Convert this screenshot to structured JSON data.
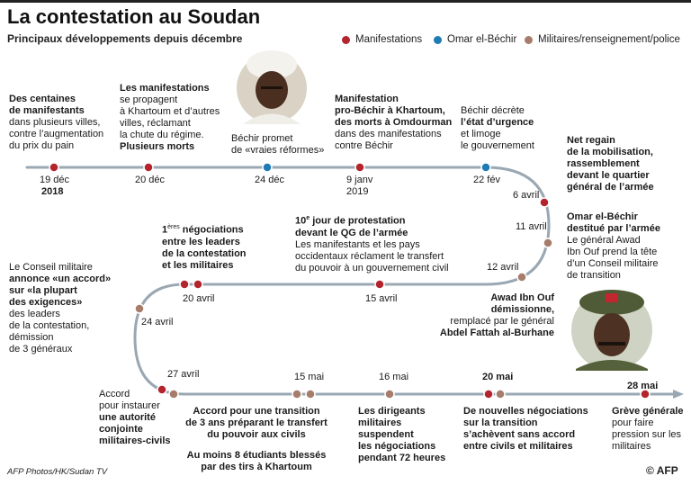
{
  "header": {
    "title": "La contestation au Soudan",
    "subtitle": "Principaux développements depuis décembre"
  },
  "legend": [
    {
      "label": "Manifestations",
      "color": "#b3242c"
    },
    {
      "label": "Omar el-Béchir",
      "color": "#1f7bb5"
    },
    {
      "label": "Militaires/renseignement/police",
      "color": "#a77c6a"
    }
  ],
  "photos": {
    "bashir": "portrait-omar-el-bechir",
    "burhane": "portrait-abdel-fattah-al-burhane"
  },
  "events": [
    {
      "id": "e1",
      "date": "19 déc",
      "date2": "2018",
      "type": "manifestation",
      "text": [
        "Des centaines",
        "de manifestants",
        "dans plusieurs villes,",
        "contre l’augmentation",
        "du prix du pain"
      ]
    },
    {
      "id": "e2",
      "date": "20 déc",
      "type": "manifestation",
      "text": [
        "Les manifestations",
        "se propagent",
        "à Khartoum et d’autres",
        "villes, réclamant",
        "la chute du régime.",
        "Plusieurs morts"
      ]
    },
    {
      "id": "e3",
      "date": "24 déc",
      "type": "bechir",
      "text": [
        "Béchir promet",
        "de «vraies réformes»"
      ]
    },
    {
      "id": "e4",
      "date": "9 janv",
      "date2": "2019",
      "type": "manifestation",
      "text": [
        "Manifestation",
        "pro-Béchir à Khartoum,",
        "des morts à Omdourman",
        "dans des manifestations",
        "contre Béchir"
      ]
    },
    {
      "id": "e5",
      "date": "22 fév",
      "type": "bechir",
      "text": [
        "Béchir décrète",
        "l’état d’urgence",
        "et limoge",
        "le gouvernement"
      ]
    },
    {
      "id": "e6",
      "date": "6 avril",
      "type": "manifestation",
      "text": [
        "Net regain",
        "de la mobilisation,",
        "rassemblement",
        "devant le quartier",
        "général de l’armée"
      ]
    },
    {
      "id": "e7",
      "date": "11 avril",
      "type": "militaire",
      "text": [
        "Omar el-Béchir",
        "destitué par l’armée",
        "Le général Awad",
        "Ibn Ouf prend la tête",
        "d’un Conseil militaire",
        "de transition"
      ]
    },
    {
      "id": "e8",
      "date": "12 avril",
      "type": "militaire",
      "text": [
        "Awad Ibn Ouf démissionne,",
        "remplacé par le général",
        "Abdel Fattah al-Burhane"
      ]
    },
    {
      "id": "e9",
      "date": "15 avril",
      "type": "manifestation",
      "text_sup": "e",
      "text_head": "10",
      "text": [
        "jour de protestation",
        "devant le QG de l’armée",
        "Les manifestants et les pays",
        "occidentaux réclament le transfert",
        "du pouvoir à un gouvernement civil"
      ]
    },
    {
      "id": "e10",
      "date": "20 avril",
      "type": "manifestation",
      "text_head": "1",
      "text_sup": "ères",
      "text": [
        "négociations",
        "entre les leaders",
        "de la contestation",
        "et les militaires"
      ]
    },
    {
      "id": "e11",
      "date": "24 avril",
      "type": "militaire",
      "text": [
        "Le Conseil militaire",
        "annonce «un accord»",
        "sur «la plupart",
        "des exigences»",
        "des leaders",
        "de la contestation,",
        "démission",
        "de 3 généraux"
      ]
    },
    {
      "id": "e12",
      "date": "27 avril",
      "type": "manifestation",
      "text": [
        "Accord",
        "pour instaurer",
        "une autorité",
        "conjointe",
        "militaires-civils"
      ]
    },
    {
      "id": "e13",
      "date": "15 mai",
      "type": "militaire",
      "text": [
        "Accord pour une transition",
        "de 3 ans préparant le transfert",
        "du pouvoir aux civils"
      ],
      "text_b": [
        "Au moins 8 étudiants blessés",
        "par des tirs à Khartoum"
      ]
    },
    {
      "id": "e14",
      "date": "16 mai",
      "type": "militaire",
      "text": [
        "Les dirigeants",
        "militaires",
        "suspendent",
        "les négociations",
        "pendant 72 heures"
      ]
    },
    {
      "id": "e15",
      "date": "20 mai",
      "type": "manifestation",
      "text": [
        "De nouvelles négociations",
        "sur la transition",
        "s’achèvent sans accord",
        "entre civils et militaires"
      ]
    },
    {
      "id": "e16",
      "date": "28 mai",
      "type": "manifestation",
      "text": [
        "Grève générale",
        "pour faire",
        "pression sur les",
        "militaires"
      ]
    }
  ],
  "footer": {
    "credit": "AFP Photos/HK/Sudan TV",
    "copyright": "© AFP"
  }
}
